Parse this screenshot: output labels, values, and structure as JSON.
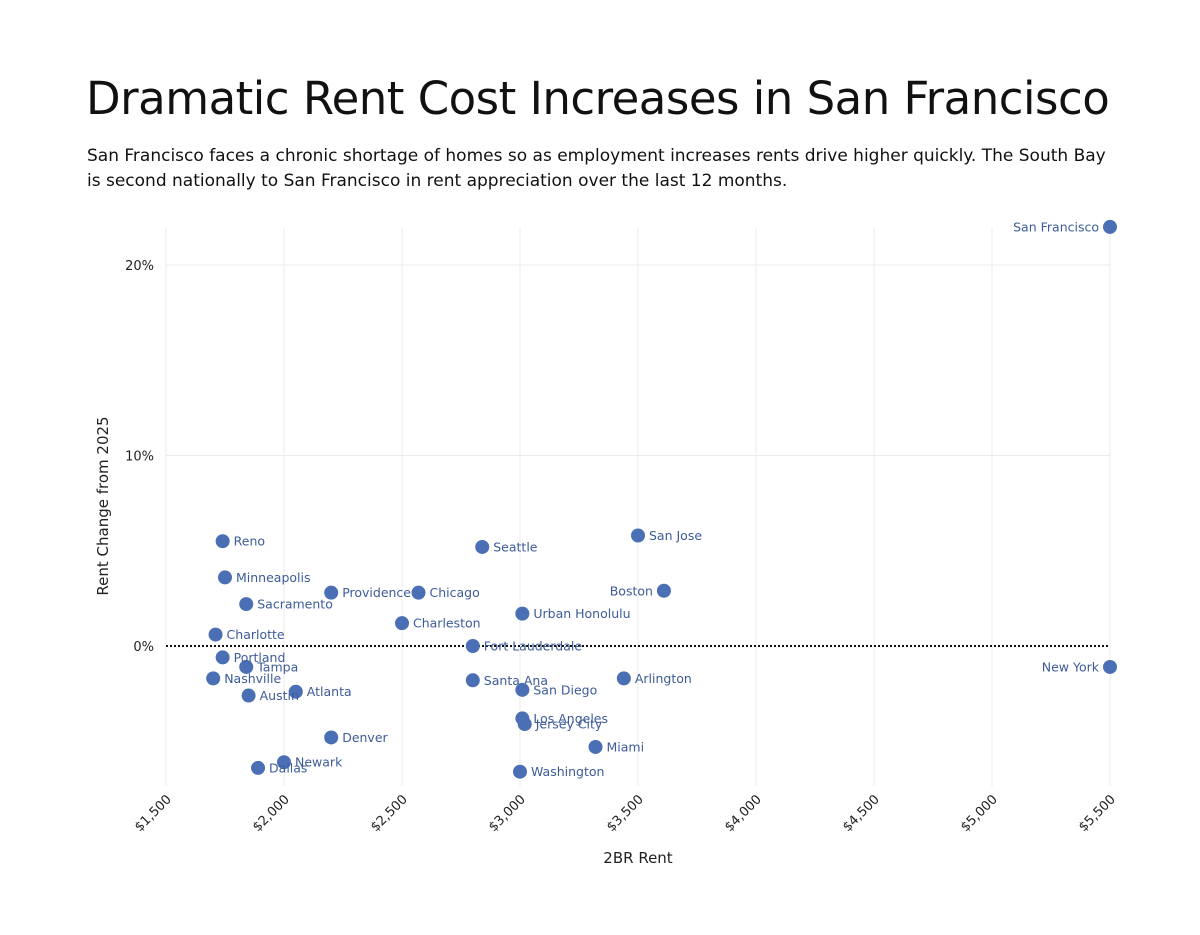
{
  "title": "Dramatic Rent Cost Increases in San Francisco",
  "subtitle": "San Francisco faces a chronic shortage of homes so as employment increases rents drive higher quickly. The South Bay is second nationally to San Francisco in rent appreciation over the last 12 months.",
  "chart_data": {
    "type": "scatter",
    "xlabel": "2BR Rent",
    "ylabel": "Rent Change from 2025",
    "xlim": [
      1500,
      5500
    ],
    "ylim": [
      -7.2,
      22
    ],
    "x_ticks": [
      1500,
      2000,
      2500,
      3000,
      3500,
      4000,
      4500,
      5000,
      5500
    ],
    "x_tick_labels": [
      "$1,500",
      "$2,000",
      "$2,500",
      "$3,000",
      "$3,500",
      "$4,000",
      "$4,500",
      "$5,000",
      "$5,500"
    ],
    "y_ticks": [
      0,
      10,
      20
    ],
    "y_tick_labels": [
      "0%",
      "10%",
      "20%"
    ],
    "grid": true,
    "zero_line": "dotted",
    "marker_color": "#4a6fb5",
    "label_color": "#3d5b99",
    "points": [
      {
        "label": "San Francisco",
        "x": 5500,
        "y": 22.0,
        "label_side": "left"
      },
      {
        "label": "New York",
        "x": 5500,
        "y": -1.1,
        "label_side": "left"
      },
      {
        "label": "San Jose",
        "x": 3500,
        "y": 5.8
      },
      {
        "label": "Boston",
        "x": 3610,
        "y": 2.9,
        "label_side": "left"
      },
      {
        "label": "Arlington",
        "x": 3440,
        "y": -1.7
      },
      {
        "label": "Miami",
        "x": 3320,
        "y": -5.3
      },
      {
        "label": "Seattle",
        "x": 2840,
        "y": 5.2
      },
      {
        "label": "Urban Honolulu",
        "x": 3010,
        "y": 1.7
      },
      {
        "label": "Fort Lauderdale",
        "x": 2800,
        "y": 0.0
      },
      {
        "label": "Santa Ana",
        "x": 2800,
        "y": -1.8
      },
      {
        "label": "San Diego",
        "x": 3010,
        "y": -2.3
      },
      {
        "label": "Los Angeles",
        "x": 3010,
        "y": -3.8
      },
      {
        "label": "Jersey City",
        "x": 3020,
        "y": -4.1
      },
      {
        "label": "Washington",
        "x": 3000,
        "y": -6.6
      },
      {
        "label": "Chicago",
        "x": 2570,
        "y": 2.8
      },
      {
        "label": "Providence",
        "x": 2200,
        "y": 2.8
      },
      {
        "label": "Charleston",
        "x": 2500,
        "y": 1.2
      },
      {
        "label": "Denver",
        "x": 2200,
        "y": -4.8
      },
      {
        "label": "Newark",
        "x": 2000,
        "y": -6.1
      },
      {
        "label": "Dallas",
        "x": 1890,
        "y": -6.4
      },
      {
        "label": "Atlanta",
        "x": 2050,
        "y": -2.4
      },
      {
        "label": "Austin",
        "x": 1850,
        "y": -2.6
      },
      {
        "label": "Tampa",
        "x": 1840,
        "y": -1.1
      },
      {
        "label": "Portland",
        "x": 1740,
        "y": -0.6
      },
      {
        "label": "Nashville",
        "x": 1700,
        "y": -1.7
      },
      {
        "label": "Charlotte",
        "x": 1710,
        "y": 0.6
      },
      {
        "label": "Sacramento",
        "x": 1840,
        "y": 2.2
      },
      {
        "label": "Minneapolis",
        "x": 1750,
        "y": 3.6
      },
      {
        "label": "Reno",
        "x": 1740,
        "y": 5.5
      }
    ]
  }
}
